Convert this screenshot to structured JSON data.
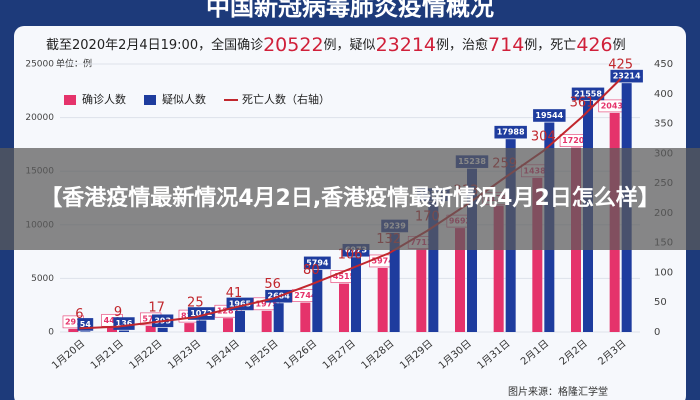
{
  "chart_data": {
    "type": "bar-line",
    "title": "中国新冠病毒肺炎疫情概况",
    "subtitle_parts": [
      "截至2020年2月4日19:00，全国确诊",
      "20522",
      "例，疑似",
      "23214",
      "例，治愈",
      "714",
      "例，死亡",
      "426",
      "例"
    ],
    "unit_label": "单位：例",
    "categories": [
      "1月20日",
      "1月21日",
      "1月22日",
      "1月23日",
      "1月24日",
      "1月25日",
      "1月26日",
      "1月27日",
      "1月28日",
      "1月29日",
      "1月30日",
      "1月31日",
      "2月1日",
      "2月2日",
      "2月3日"
    ],
    "series": [
      {
        "name": "确诊人数",
        "color": "#e5336b",
        "values": [
          291,
          440,
          571,
          830,
          1287,
          1975,
          2744,
          4515,
          5974,
          7711,
          9692,
          11791,
          14380,
          17205,
          20438
        ]
      },
      {
        "name": "疑似人数",
        "color": "#1e3c9e",
        "values": [
          54,
          136,
          393,
          1072,
          1965,
          2684,
          5794,
          6973,
          9239,
          12167,
          15238,
          17988,
          19544,
          21558,
          23214
        ]
      },
      {
        "name": "死亡人数（右轴）",
        "color": "#c1272d",
        "axis": "y2",
        "values": [
          6,
          9,
          17,
          25,
          41,
          56,
          80,
          106,
          132,
          170,
          213,
          259,
          304,
          361,
          425
        ]
      }
    ],
    "ylim": [
      0,
      25000
    ],
    "yticks": [
      0,
      5000,
      10000,
      15000,
      20000,
      25000
    ],
    "y2lim": [
      0,
      450
    ],
    "y2ticks": [
      0,
      50,
      100,
      150,
      200,
      250,
      300,
      350,
      400,
      450
    ],
    "grid": true,
    "source": "图片来源：格隆汇学堂"
  },
  "banner": {
    "lines": [
      "【香港疫情最新情况4月2日,香港疫情最新情况4月2日怎么样】"
    ]
  }
}
